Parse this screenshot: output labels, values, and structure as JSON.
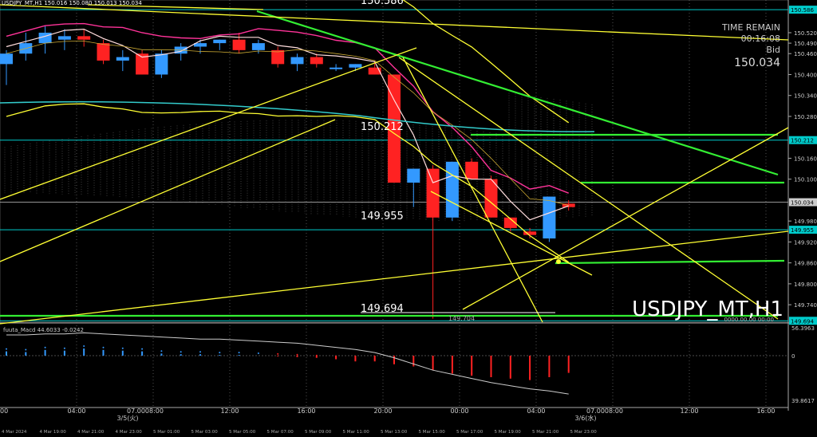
{
  "header": {
    "symbol_text": "USDJPY_MT,H1  150.016 150.080 150.013 150.034",
    "high_label": "150.586"
  },
  "info_panel": {
    "time_remain_label": "TIME REMAIN",
    "time_remain_value": "00:16:08",
    "bid_label": "Bid",
    "bid_value": "150.034"
  },
  "watermark": "USDJPY_MT,H1",
  "level_labels": [
    "150.212",
    "149.955",
    "149.694"
  ],
  "low_marker": "149.704",
  "ma_text": "0000.00.00 00:00",
  "colors": {
    "bull": "#3399ff",
    "bear": "#ff2222",
    "level_line": "#00cccc",
    "trend_green": "#33ee33",
    "trend_yellow": "#ffff33",
    "grid": "#888888",
    "histogram_pos": "#3399ff",
    "histogram_neg": "#ff2222",
    "macd_signal": "#cccccc"
  },
  "chart_data": [
    {
      "type": "candlestick",
      "title": "USDJPY_MT,H1",
      "ylim": [
        149.69,
        150.6
      ],
      "y_ticks": [
        "150.586",
        "150.520",
        "150.490",
        "150.460",
        "150.400",
        "150.340",
        "150.280",
        "150.212",
        "150.160",
        "150.100",
        "150.034",
        "149.980",
        "149.955",
        "149.920",
        "149.860",
        "149.800",
        "149.740",
        "149.694"
      ],
      "price_tags": [
        {
          "value": "150.586",
          "color": "#00cccc"
        },
        {
          "value": "150.212",
          "color": "#00cccc"
        },
        {
          "value": "150.034",
          "color": "#cccccc"
        },
        {
          "value": "149.955",
          "color": "#00cccc"
        },
        {
          "value": "149.694",
          "color": "#00cccc"
        }
      ],
      "horizontal_levels": [
        150.586,
        150.212,
        149.955,
        149.694
      ],
      "candles": [
        {
          "o": 150.43,
          "h": 150.47,
          "l": 150.37,
          "c": 150.46
        },
        {
          "o": 150.46,
          "h": 150.52,
          "l": 150.44,
          "c": 150.49
        },
        {
          "o": 150.49,
          "h": 150.54,
          "l": 150.46,
          "c": 150.52
        },
        {
          "o": 150.5,
          "h": 150.53,
          "l": 150.47,
          "c": 150.51
        },
        {
          "o": 150.51,
          "h": 150.53,
          "l": 150.48,
          "c": 150.5
        },
        {
          "o": 150.49,
          "h": 150.5,
          "l": 150.43,
          "c": 150.44
        },
        {
          "o": 150.44,
          "h": 150.47,
          "l": 150.41,
          "c": 150.45
        },
        {
          "o": 150.46,
          "h": 150.47,
          "l": 150.4,
          "c": 150.4
        },
        {
          "o": 150.4,
          "h": 150.47,
          "l": 150.39,
          "c": 150.46
        },
        {
          "o": 150.46,
          "h": 150.49,
          "l": 150.44,
          "c": 150.48
        },
        {
          "o": 150.48,
          "h": 150.5,
          "l": 150.46,
          "c": 150.49
        },
        {
          "o": 150.49,
          "h": 150.5,
          "l": 150.47,
          "c": 150.5
        },
        {
          "o": 150.5,
          "h": 150.52,
          "l": 150.46,
          "c": 150.47
        },
        {
          "o": 150.47,
          "h": 150.5,
          "l": 150.46,
          "c": 150.49
        },
        {
          "o": 150.47,
          "h": 150.48,
          "l": 150.42,
          "c": 150.43
        },
        {
          "o": 150.43,
          "h": 150.46,
          "l": 150.41,
          "c": 150.45
        },
        {
          "o": 150.45,
          "h": 150.46,
          "l": 150.42,
          "c": 150.43
        },
        {
          "o": 150.42,
          "h": 150.43,
          "l": 150.41,
          "c": 150.42
        },
        {
          "o": 150.42,
          "h": 150.43,
          "l": 150.41,
          "c": 150.43
        },
        {
          "o": 150.42,
          "h": 150.44,
          "l": 150.4,
          "c": 150.4
        },
        {
          "o": 150.4,
          "h": 150.4,
          "l": 150.09,
          "c": 150.09
        },
        {
          "o": 150.09,
          "h": 150.13,
          "l": 150.02,
          "c": 150.13
        },
        {
          "o": 150.13,
          "h": 150.14,
          "l": 149.7,
          "c": 149.99
        },
        {
          "o": 149.99,
          "h": 150.15,
          "l": 149.98,
          "c": 150.15
        },
        {
          "o": 150.15,
          "h": 150.16,
          "l": 150.1,
          "c": 150.1
        },
        {
          "o": 150.1,
          "h": 150.11,
          "l": 149.99,
          "c": 149.99
        },
        {
          "o": 149.99,
          "h": 149.99,
          "l": 149.95,
          "c": 149.96
        },
        {
          "o": 149.95,
          "h": 149.96,
          "l": 149.93,
          "c": 149.94
        },
        {
          "o": 149.93,
          "h": 150.05,
          "l": 149.92,
          "c": 150.05
        },
        {
          "o": 150.03,
          "h": 150.04,
          "l": 150.01,
          "c": 150.02
        }
      ]
    },
    {
      "type": "macd",
      "title": "fuuta_Macd 44.6033 -0.0242",
      "y_ticks": [
        "56.3963",
        "0",
        "39.8617"
      ],
      "histogram": [
        6,
        5,
        8,
        7,
        10,
        8,
        7,
        6,
        3,
        2,
        2,
        1,
        1,
        0,
        -1,
        -2,
        -3,
        -5,
        -8,
        -8,
        -12,
        -15,
        -20,
        -25,
        -28,
        -30,
        -32,
        -34,
        -30,
        -24
      ],
      "signal": [
        20,
        20,
        21,
        21,
        22,
        21,
        20,
        19,
        18,
        17,
        16,
        16,
        15,
        14,
        13,
        12,
        10,
        8,
        6,
        3,
        -2,
        -8,
        -14,
        -18,
        -22,
        -26,
        -29,
        -32,
        -34,
        -37
      ]
    }
  ],
  "x_axis": {
    "top_labels": [
      "00",
      "04:00",
      "07.0008:00",
      "12:00",
      "16:00",
      "20:00",
      "00:00",
      "04:00",
      "07.0008:00",
      "12:00",
      "16:00"
    ],
    "date_labels": [
      "3/5(火)",
      "3/6(水)"
    ],
    "bottom_labels": [
      "4 Mar 2024",
      "4 Mar 19:00",
      "4 Mar 21:00",
      "4 Mar 23:00",
      "5 Mar 01:00",
      "5 Mar 03:00",
      "5 Mar 05:00",
      "5 Mar 07:00",
      "5 Mar 09:00",
      "5 Mar 11:00",
      "5 Mar 13:00",
      "5 Mar 15:00",
      "5 Mar 17:00",
      "5 Mar 19:00",
      "5 Mar 21:00",
      "5 Mar 23:00"
    ]
  }
}
